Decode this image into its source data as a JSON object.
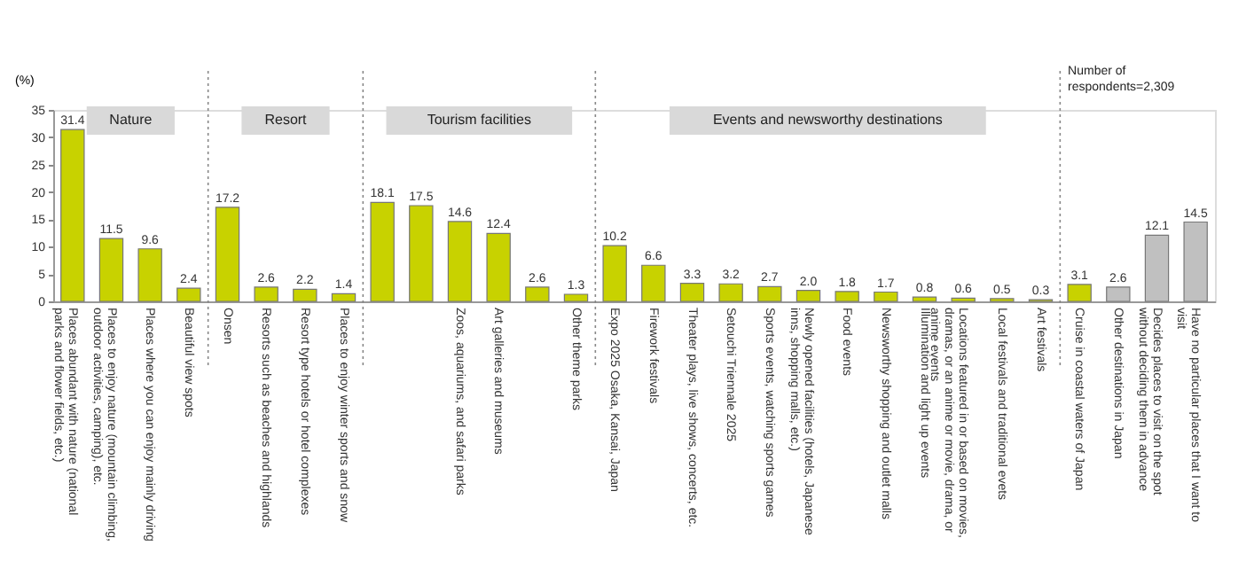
{
  "chart_data": {
    "type": "bar",
    "ylabel": "(%)",
    "categories": [
      "Places abundant with nature (national parks and flower fields, etc.)",
      "Places to enjoy nature (mountain climbing, outdoor activities, camping), etc.",
      "Places where you can enjoy mainly driving",
      "Beautiful view spots",
      "Onsen",
      "Resorts such as beaches and highlands",
      "Resort type hotels or hotel complexes",
      "Places to enjoy winter sports and snow",
      null,
      null,
      "Zoos, aquariums, and safari parks",
      "Art galleries and museums",
      null,
      "Other theme parks",
      "Expo 2025 Osaka, Kansai, Japan",
      "Firework festivals",
      "Theater plays, live shows, concerts, etc.",
      "Setouchi Triennale 2025",
      "Sports events, watching sports games",
      "Newly opened facilities (hotels, Japanese inns, shopping malls, etc.)",
      "Food events",
      "Newsworthy shopping and outlet malls",
      "Illumination and light up events",
      "Locations featured in or based on movies, dramas, or an anime or movie, drama, or anime events",
      "Local festivals and traditional evets",
      "Art festivals",
      "Cruise in coastal waters of Japan",
      "Other destinations in Japan",
      "Decides places to visit on the spot without deciding them in advance",
      "Have no particular places that I want to visit"
    ],
    "values": [
      31.4,
      11.5,
      9.6,
      2.4,
      17.2,
      2.6,
      2.2,
      1.4,
      18.1,
      17.5,
      14.6,
      12.4,
      2.6,
      1.3,
      10.2,
      6.6,
      3.3,
      3.2,
      2.7,
      2.0,
      1.8,
      1.7,
      0.8,
      0.6,
      0.5,
      0.3,
      3.1,
      2.6,
      12.1,
      14.5
    ],
    "colors": [
      "#c8d200",
      "#c8d200",
      "#c8d200",
      "#c8d200",
      "#c8d200",
      "#c8d200",
      "#c8d200",
      "#c8d200",
      "#c8d200",
      "#c8d200",
      "#c8d200",
      "#c8d200",
      "#c8d200",
      "#c8d200",
      "#c8d200",
      "#c8d200",
      "#c8d200",
      "#c8d200",
      "#c8d200",
      "#c8d200",
      "#c8d200",
      "#c8d200",
      "#c8d200",
      "#c8d200",
      "#c8d200",
      "#c8d200",
      "#c8d200",
      "#c0c0c0",
      "#c0c0c0",
      "#c0c0c0"
    ],
    "ylim": [
      0,
      35
    ],
    "yticks": [
      0,
      5,
      10,
      15,
      20,
      25,
      30,
      35
    ],
    "value_labels": [
      "31.4",
      "11.5",
      "9.6",
      "2.4",
      "17.2",
      "2.6",
      "2.2",
      "1.4",
      "18.1",
      "17.5",
      "14.6",
      "12.4",
      "2.6",
      "1.3",
      "10.2",
      "6.6",
      "3.3",
      "3.2",
      "2.7",
      "2.0",
      "1.8",
      "1.7",
      "0.8",
      "0.6",
      "0.5",
      "0.3",
      "3.1",
      "2.6",
      "12.1",
      "14.5"
    ],
    "grid": false,
    "annotations": [
      "Nature",
      "Resort",
      "Tourism facilities",
      "Events and newsworthy destinations",
      "Number of respondents=2,309"
    ]
  }
}
